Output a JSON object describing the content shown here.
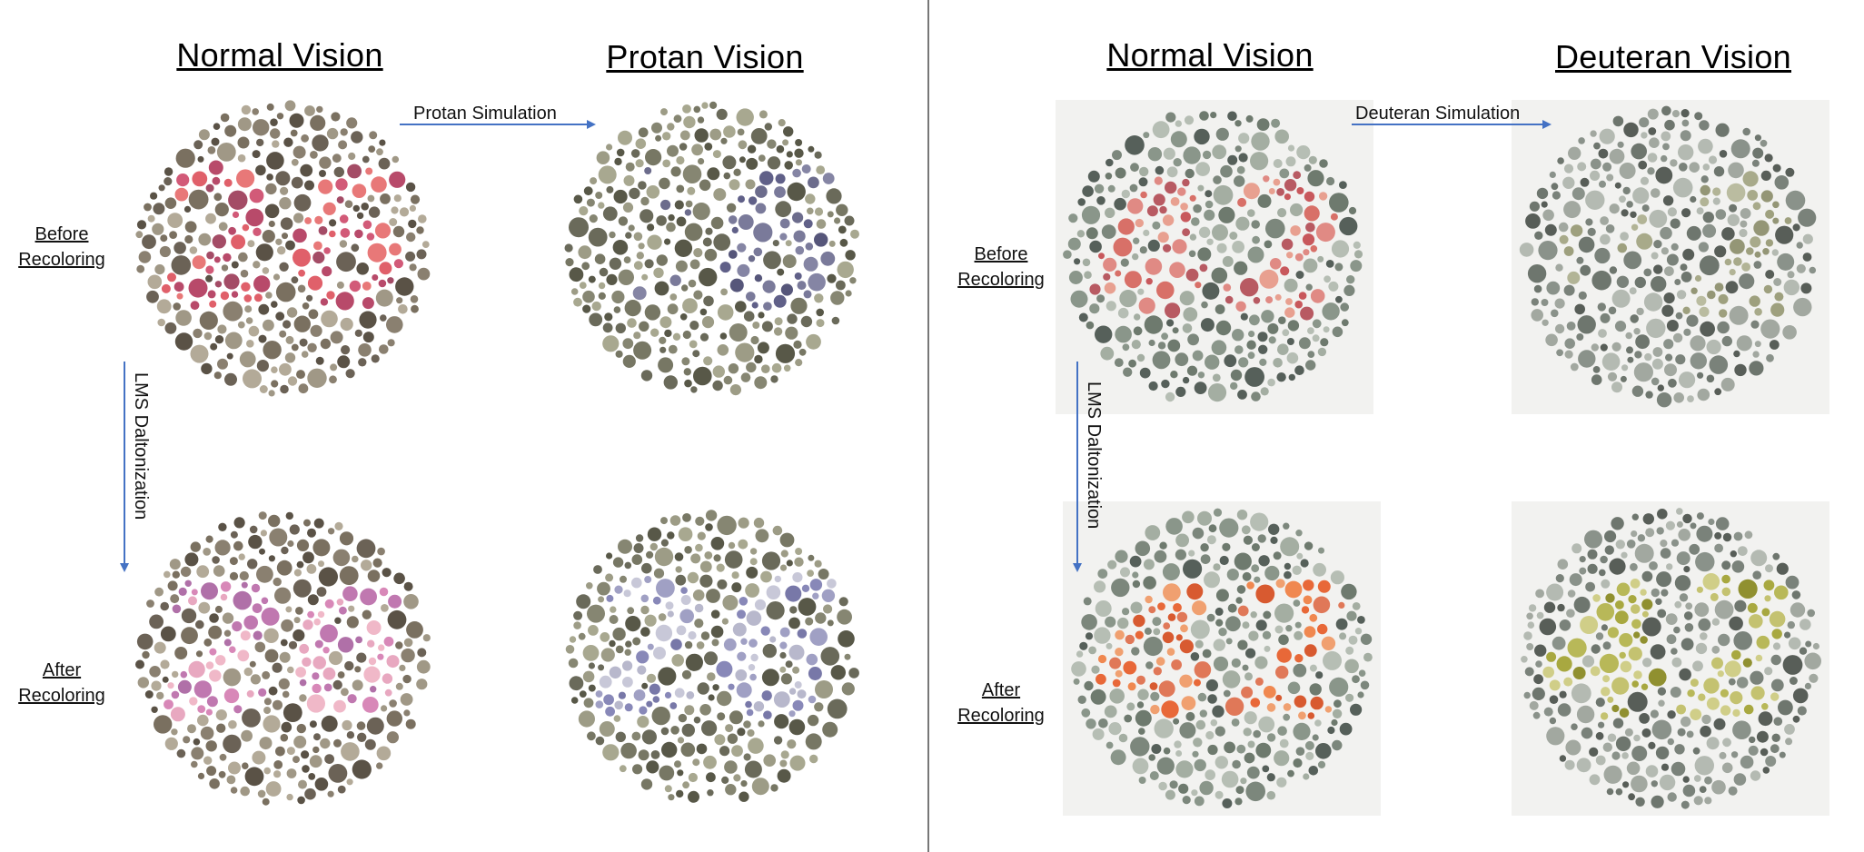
{
  "left_panel": {
    "headings": {
      "normal": "Normal Vision",
      "simulated": "Protan Vision"
    },
    "row_labels": {
      "before": [
        "Before",
        "Recoloring"
      ],
      "after": [
        "After",
        "Recoloring"
      ]
    },
    "arrows": {
      "simulation": "Protan Simulation",
      "daltonization": "LMS Daltonization"
    },
    "plate_number": "26"
  },
  "right_panel": {
    "headings": {
      "normal": "Normal Vision",
      "simulated": "Deuteran Vision"
    },
    "row_labels": {
      "before": [
        "Before",
        "Recoloring"
      ],
      "after": [
        "After",
        "Recoloring"
      ]
    },
    "arrows": {
      "simulation": "Deuteran Simulation",
      "daltonization": "LMS Daltonization"
    },
    "plate_number": "42"
  },
  "colors": {
    "arrow": "#4472c4",
    "divider": "#777777",
    "plates": {
      "left_before_normal": {
        "bg": [
          "#6b6256",
          "#8a8070",
          "#a09886",
          "#5a5246",
          "#7a7060",
          "#b3aa98"
        ],
        "fg": [
          "#e0606a",
          "#d25a78",
          "#b84a6a",
          "#e87878",
          "#a44c66"
        ]
      },
      "left_before_protan": {
        "bg": [
          "#6a6a5a",
          "#868672",
          "#9d9c86",
          "#585848",
          "#777764",
          "#a8a890"
        ],
        "fg": [
          "#6c6c8c",
          "#606088",
          "#7a7a9a",
          "#56567a",
          "#8585a4"
        ]
      },
      "left_after_normal": {
        "bg": [
          "#6b6256",
          "#8a8070",
          "#a09886",
          "#5a5246",
          "#7a7060",
          "#b3aa98"
        ],
        "fg": [
          "#e8a8c0",
          "#d888b8",
          "#c078b0",
          "#f0b8c8",
          "#b070a8"
        ]
      },
      "left_after_protan": {
        "bg": [
          "#6a6a5a",
          "#868672",
          "#9d9c86",
          "#585848",
          "#777764",
          "#a8a890"
        ],
        "fg": [
          "#b8b8cc",
          "#a0a0c4",
          "#8888b8",
          "#c8c8d8",
          "#7878a8"
        ]
      },
      "right_before_normal": {
        "bg": [
          "#6e7a6e",
          "#8a968a",
          "#a4aea2",
          "#56605a",
          "#7c877c",
          "#b6beb4"
        ],
        "fg": [
          "#e08a84",
          "#d87068",
          "#c8585c",
          "#e8a090",
          "#b85a62"
        ]
      },
      "right_before_deuteran": {
        "bg": [
          "#6e766e",
          "#8a928a",
          "#a2a8a0",
          "#585e58",
          "#7a827a",
          "#b4bab2"
        ],
        "fg": [
          "#a8aa8a",
          "#9ea07e",
          "#b2b496",
          "#949676",
          "#babca0"
        ]
      },
      "right_after_normal": {
        "bg": [
          "#6e7a6e",
          "#8a968a",
          "#a4aea2",
          "#56605a",
          "#7c877c",
          "#b6beb4"
        ],
        "fg": [
          "#e86838",
          "#f08850",
          "#d85a30",
          "#f0a070",
          "#e07858"
        ]
      },
      "right_after_deuteran": {
        "bg": [
          "#6e766e",
          "#8a928a",
          "#a2a8a0",
          "#585e58",
          "#7a827a",
          "#b4bab2"
        ],
        "fg": [
          "#a8a840",
          "#b8b858",
          "#c4c270",
          "#909030",
          "#d0ce88"
        ]
      }
    }
  }
}
